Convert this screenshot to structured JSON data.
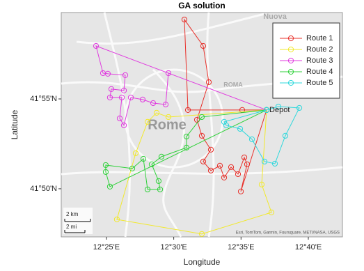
{
  "chart_data": {
    "type": "line",
    "title": "GA solution",
    "x_label": "Longitude",
    "y_label": "Latitude",
    "xlim": [
      12.3607,
      12.7089
    ],
    "ylim": [
      41.7887,
      41.9968
    ],
    "xticks": [
      {
        "value": 12.41667,
        "label": "12°25'E"
      },
      {
        "value": 12.5,
        "label": "12°30'E"
      },
      {
        "value": 12.58333,
        "label": "12°35'E"
      },
      {
        "value": 12.66667,
        "label": "12°40'E"
      }
    ],
    "yticks": [
      {
        "value": 41.83333,
        "label": "41°50'N"
      },
      {
        "value": 41.91667,
        "label": "41°55'N"
      }
    ],
    "legend": "top-right",
    "series": [
      {
        "name": "Route 1",
        "color": "#e8302a",
        "x": [
          12.615,
          12.5848,
          12.5176,
          12.5132,
          12.5365,
          12.5434,
          12.5288,
          12.5348,
          12.546,
          12.5365,
          12.546,
          12.5572,
          12.5624,
          12.571,
          12.5796,
          12.5874,
          12.5908,
          12.5831,
          12.615
        ],
        "values": [
          41.9064,
          41.9064,
          41.9064,
          41.9903,
          41.9658,
          41.9322,
          41.8973,
          41.8825,
          41.8696,
          41.8586,
          41.8502,
          41.8547,
          41.8437,
          41.8534,
          41.8469,
          41.8624,
          41.856,
          41.8308,
          41.9064
        ]
      },
      {
        "name": "Route 2",
        "color": "#f2e92b",
        "x": [
          12.615,
          12.6089,
          12.621,
          12.5348,
          12.4296,
          12.4529,
          12.4676,
          12.4788,
          12.4934,
          12.615
        ],
        "values": [
          41.9064,
          41.8373,
          41.8114,
          41.7914,
          41.8049,
          41.8663,
          41.8954,
          41.9038,
          41.8999,
          41.9064
        ]
      },
      {
        "name": "Route 3",
        "color": "#e03adf",
        "x": [
          12.615,
          12.4038,
          12.4124,
          12.4184,
          12.44,
          12.4383,
          12.4227,
          12.421,
          12.4357,
          12.4331,
          12.4383,
          12.4469,
          12.4615,
          12.4745,
          12.49,
          12.4934,
          12.615
        ],
        "values": [
          41.9064,
          41.9658,
          41.9406,
          41.94,
          41.9387,
          41.9245,
          41.9258,
          41.918,
          41.918,
          41.8986,
          41.8922,
          41.918,
          41.9161,
          41.9128,
          41.9115,
          41.9406,
          41.9064
        ]
      },
      {
        "name": "Route 4",
        "color": "#2fd13a",
        "x": [
          12.615,
          12.5348,
          12.5158,
          12.5158,
          12.4848,
          12.4727,
          12.4813,
          12.4831,
          12.4676,
          12.4624,
          12.4486,
          12.4158,
          12.4158,
          12.421,
          12.615
        ],
        "values": [
          41.9064,
          41.8999,
          41.8818,
          41.8715,
          41.8631,
          41.856,
          41.8405,
          41.8327,
          41.8327,
          41.8611,
          41.8521,
          41.8553,
          41.8489,
          41.8353,
          41.9064
        ]
      },
      {
        "name": "Route 5",
        "color": "#2fd8dc",
        "x": [
          12.615,
          12.6296,
          12.6555,
          12.6382,
          12.6253,
          12.6124,
          12.5969,
          12.5822,
          12.565,
          12.5624,
          12.615
        ],
        "values": [
          41.9064,
          41.9096,
          41.9083,
          41.8825,
          41.8566,
          41.8586,
          41.8792,
          41.8889,
          41.8922,
          41.8954,
          41.9064
        ]
      }
    ],
    "depot_label": {
      "text": "Depot",
      "x": 12.615,
      "y": 41.9064
    },
    "map_labels": [
      "Rome",
      "ROMA",
      "Nuova"
    ],
    "scale_bar": {
      "km": "2 km",
      "mi": "2 mi"
    },
    "attribution": "Esri, TomTom, Garmin, Foursquare, METI/NASA, USGS"
  }
}
